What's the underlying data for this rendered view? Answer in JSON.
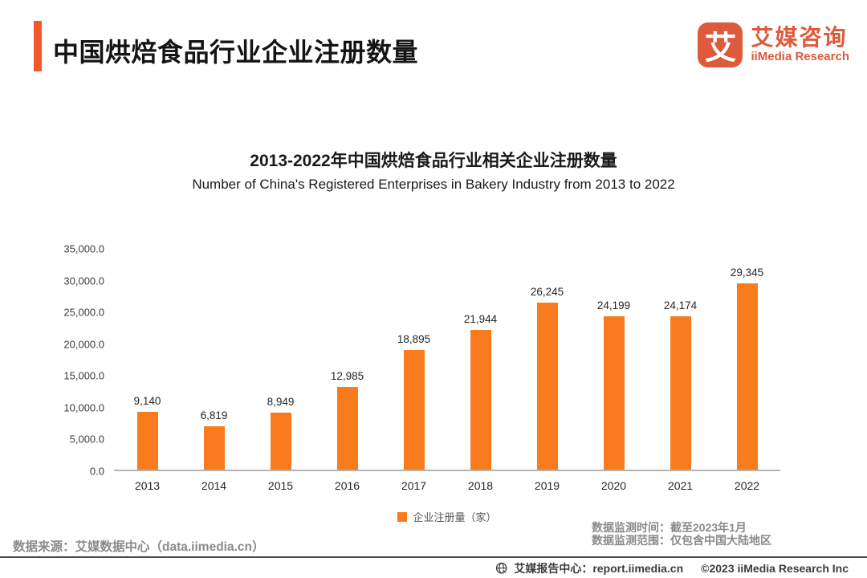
{
  "header": {
    "title": "中国烘焙食品行业企业注册数量",
    "logo": {
      "mark": "艾",
      "cn": "艾媒咨询",
      "en": "iiMedia Research"
    }
  },
  "chart_data": {
    "type": "bar",
    "title": "2013-2022年中国烘焙食品行业相关企业注册数量",
    "subtitle": "Number of China's Registered Enterprises in Bakery Industry from 2013 to 2022",
    "categories": [
      "2013",
      "2014",
      "2015",
      "2016",
      "2017",
      "2018",
      "2019",
      "2020",
      "2021",
      "2022"
    ],
    "values": [
      9140,
      6819,
      8949,
      12985,
      18895,
      21944,
      26245,
      24199,
      24174,
      29345
    ],
    "value_labels": [
      "9,140",
      "6,819",
      "8,949",
      "12,985",
      "18,895",
      "21,944",
      "26,245",
      "24,199",
      "24,174",
      "29,345"
    ],
    "legend": "企业注册量（家）",
    "legend_position": "bottom-center",
    "xlabel": "",
    "ylabel": "",
    "ylim": [
      0,
      35000
    ],
    "ytick_labels": [
      "35,000.0",
      "30,000.0",
      "25,000.0",
      "20,000.0",
      "15,000.0",
      "10,000.0",
      "5,000.0",
      "0.0"
    ],
    "grid": false,
    "bar_color": "#F87B1E"
  },
  "meta": {
    "source": "数据来源：艾媒数据中心（data.iimedia.cn）",
    "monitor_time": "数据监测时间：截至2023年1月",
    "monitor_scope": "数据监测范围：仅包含中国大陆地区"
  },
  "footer": {
    "report_center": "艾媒报告中心：report.iimedia.cn",
    "copyright": "©2023 iiMedia Research  Inc"
  },
  "colors": {
    "accent": "#F1582B",
    "bar": "#F87B1E",
    "logo": "#DD5A3B",
    "gray_text": "#8A8A8A"
  }
}
